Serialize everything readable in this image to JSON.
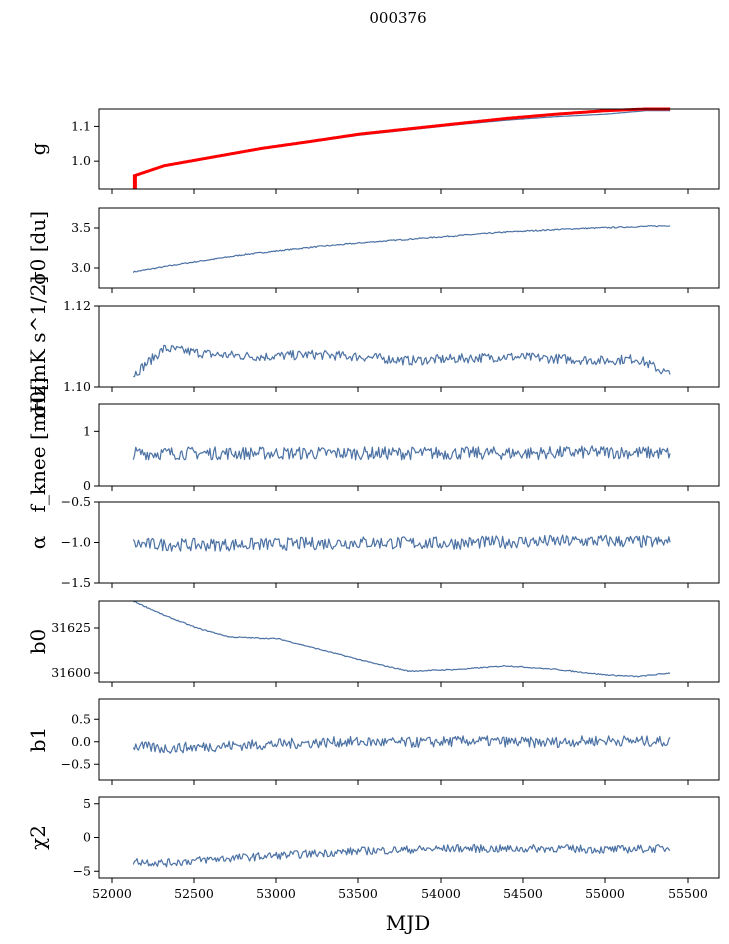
{
  "figure": {
    "title": "000376",
    "xlabel": "MJD"
  },
  "colors": {
    "series": "#4c72a4",
    "fit": "#ff0000",
    "axis": "#000000"
  },
  "chart_data": [
    {
      "id": "g",
      "type": "line",
      "ylabel": "g",
      "xlim": [
        51900,
        55700
      ],
      "ylim": [
        0.92,
        1.15
      ],
      "yticks": [
        1.0,
        1.1
      ],
      "yticklabels": [
        "1.0",
        "1.1"
      ],
      "show_xticklabels": false,
      "series": [
        {
          "name": "g",
          "color": "#4c72a4",
          "x": [
            52110,
            52300,
            52600,
            52900,
            53200,
            53500,
            53800,
            54100,
            54400,
            54700,
            55000,
            55250,
            55400
          ],
          "y": [
            0.955,
            0.985,
            1.01,
            1.035,
            1.055,
            1.075,
            1.09,
            1.105,
            1.118,
            1.128,
            1.135,
            1.145,
            1.145
          ]
        },
        {
          "name": "g fit",
          "color": "#ff0000",
          "x": [
            52110,
            52300,
            52600,
            52900,
            53200,
            53500,
            53800,
            54100,
            54400,
            54700,
            55000,
            55250,
            55400
          ],
          "y": [
            0.957,
            0.987,
            1.012,
            1.037,
            1.057,
            1.078,
            1.093,
            1.108,
            1.123,
            1.135,
            1.145,
            1.15,
            1.15
          ]
        }
      ],
      "annotations": [
        {
          "type": "vline",
          "x": 52120,
          "y": [
            0.92,
            0.96
          ],
          "color": "#ff0000"
        }
      ]
    },
    {
      "id": "sigma0_du",
      "type": "line",
      "ylabel": "σ0 [du]",
      "xlim": [
        51900,
        55700
      ],
      "ylim": [
        2.75,
        3.75
      ],
      "yticks": [
        3.0,
        3.5
      ],
      "yticklabels": [
        "3.0",
        "3.5"
      ],
      "show_xticklabels": false,
      "series": [
        {
          "name": "sigma0",
          "color": "#4c72a4",
          "x": [
            52110,
            52400,
            52800,
            53200,
            53600,
            54000,
            54400,
            54800,
            55100,
            55400
          ],
          "y": [
            2.95,
            3.05,
            3.17,
            3.26,
            3.33,
            3.39,
            3.45,
            3.49,
            3.51,
            3.53
          ]
        }
      ]
    },
    {
      "id": "sigma0_mk",
      "type": "line",
      "ylabel": "σ0[mK s^1/2]",
      "xlim": [
        51900,
        55700
      ],
      "ylim": [
        1.1,
        1.12
      ],
      "yticks": [
        1.1,
        1.12
      ],
      "yticklabels": [
        "1.10",
        "1.12"
      ],
      "show_xticklabels": false,
      "series": [
        {
          "name": "sigma0 noisy",
          "color": "#4c72a4",
          "x": [
            52110,
            52300,
            52600,
            52900,
            53200,
            53500,
            53800,
            54100,
            54400,
            54700,
            55000,
            55200,
            55400
          ],
          "y": [
            1.103,
            1.1095,
            1.108,
            1.1075,
            1.108,
            1.1075,
            1.1065,
            1.107,
            1.1075,
            1.107,
            1.1065,
            1.107,
            1.103
          ]
        }
      ]
    },
    {
      "id": "fknee",
      "type": "line",
      "ylabel": "f_knee [mHz]",
      "xlim": [
        51900,
        55700
      ],
      "ylim": [
        0,
        1.5
      ],
      "yticks": [
        0,
        1
      ],
      "yticklabels": [
        "0",
        "1"
      ],
      "show_xticklabels": false,
      "series": [
        {
          "name": "fknee",
          "color": "#4c72a4",
          "x": [
            52110,
            52500,
            53000,
            53500,
            54000,
            54500,
            55000,
            55400
          ],
          "y": [
            0.6,
            0.6,
            0.6,
            0.6,
            0.6,
            0.6,
            0.62,
            0.6
          ]
        }
      ]
    },
    {
      "id": "alpha",
      "type": "line",
      "ylabel": "α",
      "xlim": [
        51900,
        55700
      ],
      "ylim": [
        -1.5,
        -0.5
      ],
      "yticks": [
        -1.5,
        -1.0,
        -0.5
      ],
      "yticklabels": [
        "−1.5",
        "−1.0",
        "−0.5"
      ],
      "show_xticklabels": false,
      "series": [
        {
          "name": "alpha",
          "color": "#4c72a4",
          "x": [
            52110,
            52500,
            53000,
            53500,
            54000,
            54500,
            55000,
            55400
          ],
          "y": [
            -1.02,
            -1.03,
            -1.02,
            -1.0,
            -1.01,
            -0.99,
            -0.98,
            -1.0
          ]
        }
      ]
    },
    {
      "id": "b0",
      "type": "line",
      "ylabel": "b0",
      "xlim": [
        51900,
        55700
      ],
      "ylim": [
        31595,
        31640
      ],
      "yticks": [
        31600,
        31625
      ],
      "yticklabels": [
        "31600",
        "31625"
      ],
      "show_xticklabels": false,
      "series": [
        {
          "name": "b0",
          "color": "#4c72a4",
          "x": [
            52110,
            52300,
            52500,
            52700,
            53000,
            53300,
            53600,
            53800,
            54100,
            54400,
            54700,
            55000,
            55200,
            55400
          ],
          "y": [
            31640,
            31632,
            31625,
            31620,
            31619,
            31612,
            31605,
            31601,
            31602,
            31604,
            31602,
            31599,
            31598,
            31600
          ]
        }
      ]
    },
    {
      "id": "b1",
      "type": "line",
      "ylabel": "b1",
      "xlim": [
        51900,
        55700
      ],
      "ylim": [
        -0.85,
        0.95
      ],
      "yticks": [
        -0.5,
        0.0,
        0.5
      ],
      "yticklabels": [
        "−0.5",
        "0.0",
        "0.5"
      ],
      "show_xticklabels": false,
      "series": [
        {
          "name": "b1",
          "color": "#4c72a4",
          "x": [
            52110,
            52300,
            52600,
            53000,
            53400,
            53800,
            54200,
            54600,
            55000,
            55400
          ],
          "y": [
            -0.1,
            -0.15,
            -0.1,
            -0.05,
            0.0,
            -0.02,
            0.02,
            -0.02,
            0.03,
            0.0
          ]
        }
      ]
    },
    {
      "id": "chi2",
      "type": "line",
      "ylabel": "χ2",
      "xlim": [
        51900,
        55700
      ],
      "ylim": [
        -6,
        6
      ],
      "yticks": [
        -5,
        0,
        5
      ],
      "yticklabels": [
        "−5",
        "0",
        "5"
      ],
      "show_xticklabels": true,
      "xticks": [
        52000,
        52500,
        53000,
        53500,
        54000,
        54500,
        55000,
        55500
      ],
      "xticklabels": [
        "52000",
        "52500",
        "53000",
        "53500",
        "54000",
        "54500",
        "55000",
        "55500"
      ],
      "series": [
        {
          "name": "chi2",
          "color": "#4c72a4",
          "x": [
            52110,
            52300,
            52600,
            52900,
            53200,
            53500,
            53800,
            54100,
            54400,
            54700,
            55000,
            55400
          ],
          "y": [
            -3.5,
            -3.8,
            -3.2,
            -2.8,
            -2.4,
            -2.0,
            -1.8,
            -1.6,
            -1.7,
            -1.6,
            -1.8,
            -1.6
          ]
        }
      ]
    }
  ]
}
